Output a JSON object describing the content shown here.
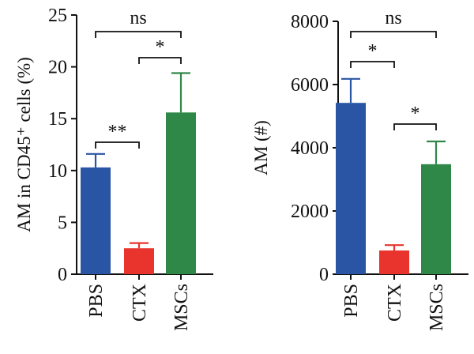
{
  "chart_data": [
    {
      "type": "bar",
      "categories": [
        "PBS",
        "CTX",
        "MSCs"
      ],
      "values": [
        10.3,
        2.5,
        15.6
      ],
      "errors": [
        1.3,
        0.5,
        3.8
      ],
      "ylabel": "AM in CD45⁺ cells (%)",
      "ylim": [
        0,
        25
      ],
      "yticks": [
        0,
        5,
        10,
        15,
        20,
        25
      ],
      "colors": [
        "#2a55a5",
        "#e8342d",
        "#2f8848"
      ],
      "annotations": [
        {
          "from": "PBS",
          "to": "CTX",
          "label": "**"
        },
        {
          "from": "CTX",
          "to": "MSCs",
          "label": "*"
        },
        {
          "from": "PBS",
          "to": "MSCs",
          "label": "ns"
        }
      ]
    },
    {
      "type": "bar",
      "categories": [
        "PBS",
        "CTX",
        "MSCs"
      ],
      "values": [
        5420,
        750,
        3480
      ],
      "errors": [
        760,
        170,
        720
      ],
      "ylabel": "AM (#)",
      "ylim": [
        0,
        8000
      ],
      "yticks": [
        0,
        2000,
        4000,
        6000,
        8000
      ],
      "colors": [
        "#2a55a5",
        "#e8342d",
        "#2f8848"
      ],
      "annotations": [
        {
          "from": "PBS",
          "to": "CTX",
          "label": "*"
        },
        {
          "from": "CTX",
          "to": "MSCs",
          "label": "*"
        },
        {
          "from": "PBS",
          "to": "MSCs",
          "label": "ns"
        }
      ]
    }
  ]
}
